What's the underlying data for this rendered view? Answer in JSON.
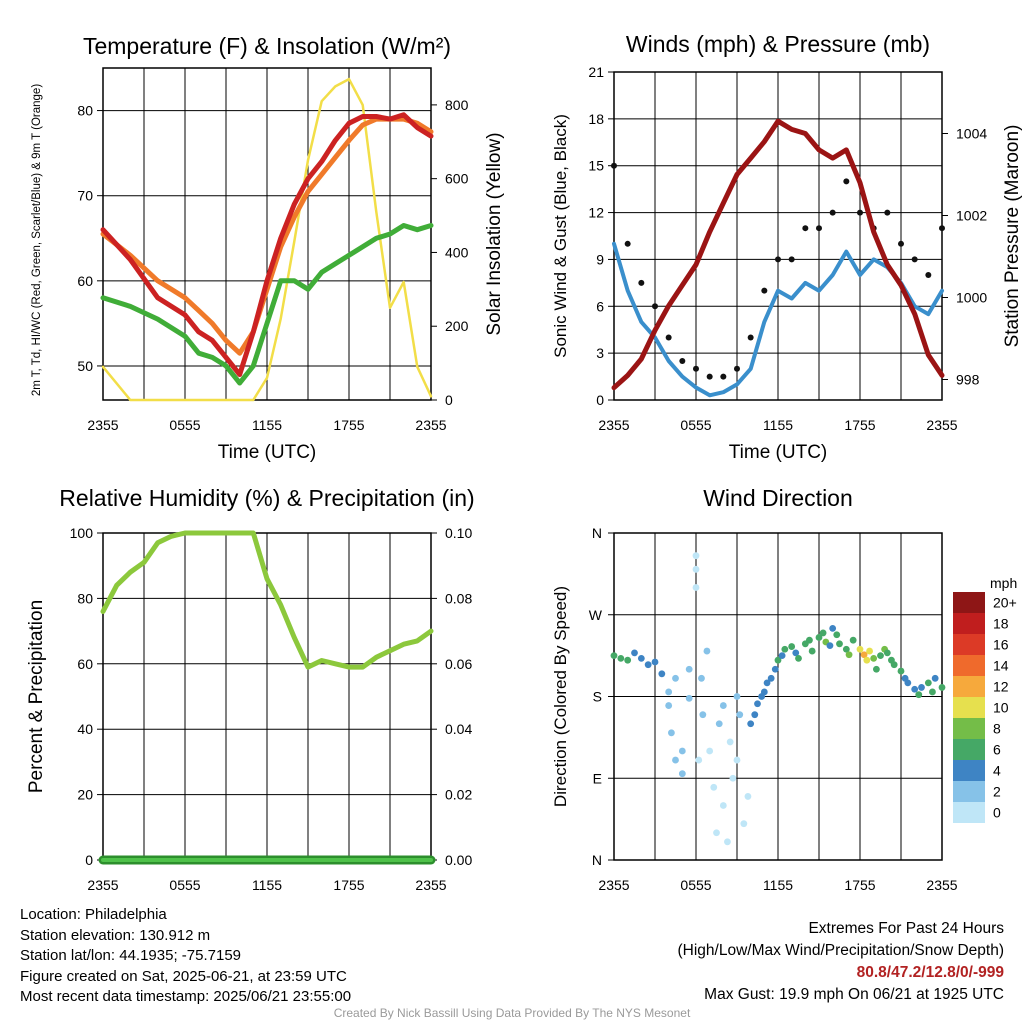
{
  "chart_data": [
    {
      "type": "line",
      "title": "Temperature (F) & Insolation (W/m²)",
      "xlabel": "Time (UTC)",
      "ylabel_left": "2m T, Td, HI/WC (Red, Green, Scarlet/Blue) & 9m T (Orange)",
      "ylabel_right": "Solar Insolation (Yellow)",
      "x_ticks": [
        "2355",
        "0555",
        "1155",
        "1755",
        "2355"
      ],
      "y_ticks_left": [
        50,
        60,
        70,
        80
      ],
      "ylim_left": [
        46,
        85
      ],
      "y_ticks_right": [
        0,
        200,
        400,
        600,
        800
      ],
      "ylim_right": [
        0,
        900
      ],
      "x_hours_since_start": [
        0,
        2,
        4,
        6,
        7,
        8,
        9,
        10,
        11,
        12,
        13,
        14,
        15,
        16,
        17,
        18,
        19,
        20,
        21,
        22,
        23,
        24
      ],
      "series": [
        {
          "name": "2m T",
          "color": "#cc2222",
          "axis": "left",
          "values": [
            66,
            62.5,
            58,
            56,
            54,
            53,
            51,
            49,
            54,
            60,
            65,
            69,
            72,
            74,
            76.5,
            78.5,
            79.3,
            79.3,
            79,
            79.5,
            78,
            77
          ]
        },
        {
          "name": "9m T",
          "color": "#f07a2a",
          "axis": "left",
          "values": [
            65.5,
            63,
            60,
            58,
            56.5,
            55,
            53,
            51.5,
            54,
            59,
            64,
            67.5,
            70.5,
            72.5,
            74.5,
            76.5,
            78.3,
            79,
            79,
            79,
            78.5,
            77.5
          ]
        },
        {
          "name": "Td",
          "color": "#40ad38",
          "axis": "left",
          "values": [
            58,
            57,
            55.5,
            53.5,
            51.5,
            51,
            50,
            48,
            50,
            55,
            60,
            60,
            59,
            61,
            62,
            63,
            64,
            65,
            65.5,
            66.5,
            66,
            66.5
          ]
        },
        {
          "name": "Solar Insolation",
          "color": "#f2de48",
          "axis": "right",
          "values": [
            90,
            0,
            0,
            0,
            0,
            0,
            0,
            0,
            0,
            60,
            220,
            430,
            650,
            810,
            850,
            870,
            800,
            510,
            250,
            320,
            90,
            10
          ]
        }
      ]
    },
    {
      "type": "line",
      "title": "Winds (mph) & Pressure (mb)",
      "xlabel": "Time (UTC)",
      "ylabel_left": "Sonic Wind & Gust (Blue, Black)",
      "ylabel_right": "Station Pressure (Maroon)",
      "x_ticks": [
        "2355",
        "0555",
        "1155",
        "1755",
        "2355"
      ],
      "y_ticks_left": [
        0,
        3,
        6,
        9,
        12,
        15,
        18,
        21
      ],
      "ylim_left": [
        0,
        21
      ],
      "y_ticks_right": [
        998,
        1000,
        1002,
        1004
      ],
      "ylim_right": [
        997.5,
        1005.5
      ],
      "x_hours_since_start": [
        0,
        1,
        2,
        3,
        4,
        5,
        6,
        7,
        8,
        9,
        10,
        11,
        12,
        13,
        14,
        15,
        16,
        17,
        18,
        19,
        20,
        21,
        22,
        23,
        24
      ],
      "series": [
        {
          "name": "Sonic Wind",
          "color": "#3a8fcc",
          "axis": "left",
          "values": [
            10,
            7,
            5,
            4,
            2.5,
            1.5,
            0.8,
            0.3,
            0.5,
            1,
            2,
            5,
            7,
            6.5,
            7.5,
            7,
            8,
            9.5,
            8,
            9,
            8.5,
            7.5,
            6,
            5.5,
            7
          ]
        },
        {
          "name": "Gust",
          "color": "#111111",
          "axis": "left",
          "values": [
            15,
            10,
            7.5,
            6,
            4,
            2.5,
            2,
            1.5,
            1.5,
            2,
            4,
            7,
            9,
            9,
            11,
            11,
            12,
            14,
            12,
            11,
            12,
            10,
            9,
            8,
            11
          ]
        },
        {
          "name": "Station Pressure",
          "color": "#9b1414",
          "axis": "right",
          "values": [
            997.8,
            998.1,
            998.5,
            999.2,
            999.8,
            1000.3,
            1000.8,
            1001.6,
            1002.3,
            1003.0,
            1003.4,
            1003.8,
            1004.3,
            1004.1,
            1004.0,
            1003.6,
            1003.4,
            1003.6,
            1002.8,
            1001.6,
            1000.8,
            1000.3,
            999.6,
            998.6,
            998.1
          ]
        }
      ]
    },
    {
      "type": "line",
      "title": "Relative Humidity (%) & Precipitation (in)",
      "xlabel": "",
      "ylabel_left": "Percent & Precipitation",
      "x_ticks": [
        "2355",
        "0555",
        "1155",
        "1755",
        "2355"
      ],
      "y_ticks_left": [
        0,
        20,
        40,
        60,
        80,
        100
      ],
      "ylim_left": [
        0,
        100
      ],
      "y_ticks_right": [
        "0.00",
        "0.02",
        "0.04",
        "0.06",
        "0.08",
        "0.10"
      ],
      "ylim_right": [
        0,
        0.1
      ],
      "x_hours_since_start": [
        0,
        1,
        2,
        3,
        4,
        5,
        6,
        7,
        8,
        9,
        10,
        11,
        12,
        13,
        14,
        15,
        16,
        17,
        18,
        19,
        20,
        21,
        22,
        23,
        24
      ],
      "series": [
        {
          "name": "Relative Humidity",
          "color": "#8cc83c",
          "axis": "left",
          "values": [
            76,
            84,
            88,
            91,
            97,
            99,
            100,
            100,
            100,
            100,
            100,
            100,
            86,
            78,
            68,
            59,
            61,
            60,
            59,
            59,
            62,
            64,
            66,
            67,
            70
          ]
        },
        {
          "name": "Precipitation",
          "color": "#2d8f2d",
          "axis": "right",
          "values": [
            0,
            0,
            0,
            0,
            0,
            0,
            0,
            0,
            0,
            0,
            0,
            0,
            0,
            0,
            0,
            0,
            0,
            0,
            0,
            0,
            0,
            0,
            0,
            0,
            0
          ]
        }
      ]
    },
    {
      "type": "scatter",
      "title": "Wind Direction",
      "ylabel": "Direction (Colored By Speed)",
      "x_ticks": [
        "2355",
        "0555",
        "1155",
        "1755",
        "2355"
      ],
      "y_ticks": [
        "N",
        "E",
        "S",
        "W",
        "N"
      ],
      "ylim_degrees": [
        0,
        360
      ],
      "legend_title": "mph",
      "legend_labels": [
        "0",
        "2",
        "4",
        "6",
        "8",
        "10",
        "12",
        "14",
        "16",
        "18",
        "20+"
      ],
      "legend_colors": [
        "#bfe6f7",
        "#86c2e8",
        "#3e84c4",
        "#45a866",
        "#74bd48",
        "#e6e04e",
        "#f6a93c",
        "#ef6a2c",
        "#dc3a26",
        "#c01e1e",
        "#8e1616"
      ],
      "points": [
        [
          0,
          225,
          5
        ],
        [
          0.5,
          222,
          5
        ],
        [
          1,
          220,
          6
        ],
        [
          1.5,
          228,
          4
        ],
        [
          2,
          222,
          4
        ],
        [
          2.5,
          215,
          4
        ],
        [
          3,
          218,
          3
        ],
        [
          3.5,
          205,
          3
        ],
        [
          4,
          185,
          1
        ],
        [
          4,
          170,
          1
        ],
        [
          4.2,
          140,
          1
        ],
        [
          4.5,
          200,
          2
        ],
        [
          4.5,
          110,
          1
        ],
        [
          5,
          95,
          2
        ],
        [
          5,
          120,
          2
        ],
        [
          5.5,
          210,
          2
        ],
        [
          5.5,
          178,
          2
        ],
        [
          6,
          300,
          0
        ],
        [
          6,
          320,
          0
        ],
        [
          6,
          335,
          0
        ],
        [
          6.2,
          110,
          0
        ],
        [
          6.4,
          200,
          1
        ],
        [
          6.5,
          160,
          1
        ],
        [
          6.8,
          230,
          1
        ],
        [
          7,
          120,
          0
        ],
        [
          7.3,
          80,
          0
        ],
        [
          7.5,
          30,
          0
        ],
        [
          7.7,
          150,
          1
        ],
        [
          8,
          170,
          1
        ],
        [
          8,
          60,
          0
        ],
        [
          8.3,
          20,
          0
        ],
        [
          8.5,
          130,
          0
        ],
        [
          8.7,
          90,
          0
        ],
        [
          9,
          110,
          0
        ],
        [
          9,
          180,
          1
        ],
        [
          9.2,
          160,
          1
        ],
        [
          9.5,
          40,
          0
        ],
        [
          9.8,
          70,
          0
        ],
        [
          10,
          150,
          4
        ],
        [
          10.3,
          160,
          3
        ],
        [
          10.5,
          172,
          3
        ],
        [
          10.8,
          180,
          4
        ],
        [
          11,
          185,
          4
        ],
        [
          11.2,
          195,
          4
        ],
        [
          11.5,
          200,
          4
        ],
        [
          11.8,
          210,
          4
        ],
        [
          12,
          220,
          5
        ],
        [
          12.3,
          225,
          4
        ],
        [
          12.5,
          232,
          5
        ],
        [
          13,
          235,
          6
        ],
        [
          13.3,
          228,
          4
        ],
        [
          13.5,
          222,
          5
        ],
        [
          14,
          238,
          6
        ],
        [
          14.3,
          242,
          5
        ],
        [
          14.5,
          230,
          6
        ],
        [
          15,
          245,
          6
        ],
        [
          15.3,
          250,
          5
        ],
        [
          15.5,
          240,
          7
        ],
        [
          15.8,
          236,
          4
        ],
        [
          16,
          255,
          4
        ],
        [
          16.3,
          248,
          6
        ],
        [
          16.5,
          238,
          6
        ],
        [
          17,
          232,
          5
        ],
        [
          17.2,
          226,
          7
        ],
        [
          17.5,
          242,
          6
        ],
        [
          18,
          232,
          10
        ],
        [
          18.3,
          226,
          12
        ],
        [
          18.5,
          220,
          9
        ],
        [
          18.7,
          230,
          10
        ],
        [
          19,
          222,
          7
        ],
        [
          19.2,
          210,
          6
        ],
        [
          19.5,
          225,
          6
        ],
        [
          19.8,
          232,
          7
        ],
        [
          20,
          228,
          6
        ],
        [
          20.3,
          220,
          6
        ],
        [
          20.5,
          215,
          6
        ],
        [
          21,
          208,
          5
        ],
        [
          21.3,
          200,
          4
        ],
        [
          21.5,
          195,
          4
        ],
        [
          22,
          188,
          4
        ],
        [
          22.3,
          182,
          5
        ],
        [
          22.5,
          190,
          4
        ],
        [
          23,
          195,
          5
        ],
        [
          23.3,
          185,
          5
        ],
        [
          23.5,
          200,
          4
        ],
        [
          24,
          190,
          6
        ]
      ]
    }
  ],
  "footer": {
    "location": "Location: Philadelphia",
    "elevation": "Station elevation: 130.912 m",
    "latlon": "Station lat/lon: 44.1935; -75.7159",
    "created": "Figure created on Sat, 2025-06-21, at 23:59 UTC",
    "recent": "Most recent data timestamp: 2025/06/21 23:55:00",
    "extremes_title": "Extremes For Past 24 Hours",
    "extremes_subtitle": "(High/Low/Max Wind/Precipitation/Snow Depth)",
    "extremes_values": "80.8/47.2/12.8/0/-999",
    "max_gust": "Max Gust: 19.9 mph On 06/21 at 1925 UTC",
    "credit": "Created By Nick Bassill Using Data Provided By The NYS Mesonet"
  }
}
